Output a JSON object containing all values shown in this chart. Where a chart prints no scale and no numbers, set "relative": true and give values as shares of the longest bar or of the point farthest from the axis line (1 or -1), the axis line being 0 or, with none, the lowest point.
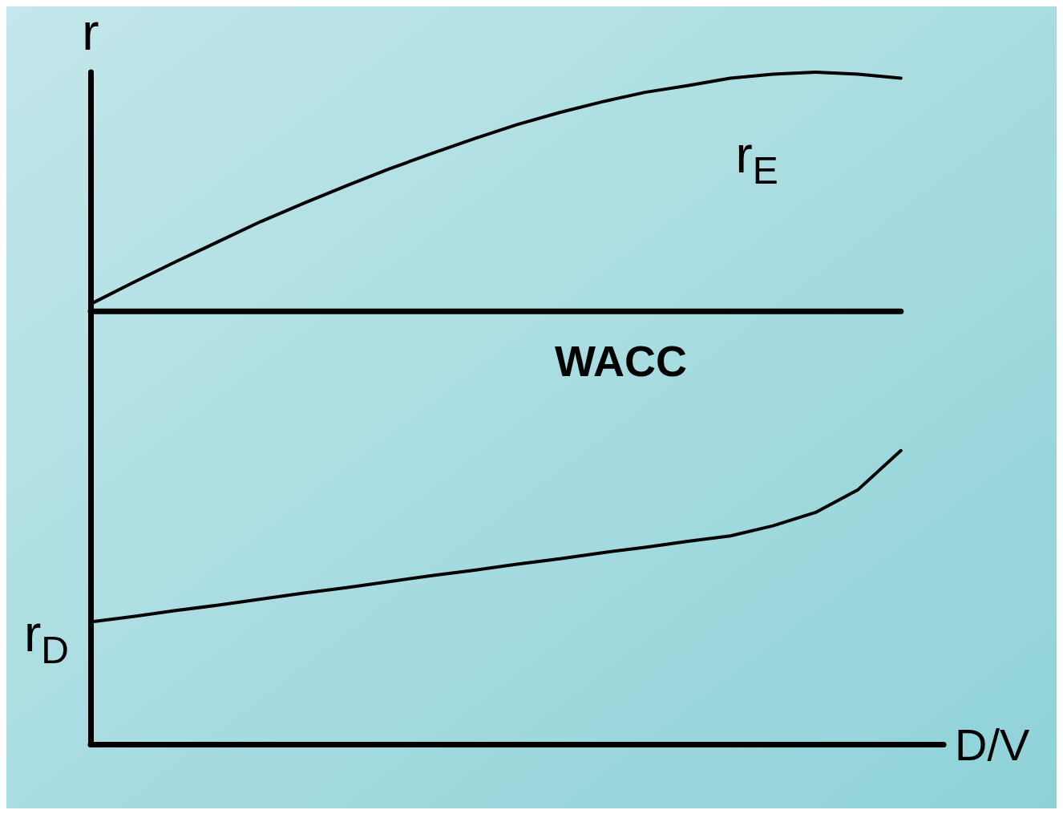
{
  "chart_data": {
    "type": "line",
    "relative": true,
    "ylabel": "r",
    "xlabel": "D/V",
    "legend": false,
    "grid": false,
    "marker": "none",
    "line_style": "solid",
    "categories": [
      null,
      null,
      null,
      null,
      null,
      null,
      null,
      null,
      null,
      null,
      null,
      null,
      null,
      null,
      null,
      null,
      null,
      null,
      null,
      null,
      null
    ],
    "series": [
      {
        "name": "r$_{E}$",
        "color": "#000000",
        "values": [
          0.655,
          0.687,
          0.718,
          0.748,
          0.778,
          0.805,
          0.831,
          0.856,
          0.879,
          0.901,
          0.922,
          0.94,
          0.956,
          0.97,
          0.98,
          0.991,
          0.997,
          1.0,
          0.997,
          0.991,
          null
        ]
      },
      {
        "name": "WACC",
        "color": "#000000",
        "values": [
          0.644,
          0.644,
          0.644,
          0.644,
          0.644,
          0.644,
          0.644,
          0.644,
          0.644,
          0.644,
          0.644,
          0.644,
          0.644,
          0.644,
          0.644,
          0.644,
          0.644,
          0.644,
          0.644,
          0.644,
          null
        ]
      },
      {
        "name": "r$_{D}$",
        "color": "#000000",
        "values": [
          0.182,
          0.19,
          0.199,
          0.207,
          0.216,
          0.225,
          0.233,
          0.242,
          0.251,
          0.259,
          0.268,
          0.276,
          0.285,
          0.293,
          0.302,
          0.31,
          0.325,
          0.345,
          0.379,
          0.437,
          null
        ]
      }
    ]
  }
}
